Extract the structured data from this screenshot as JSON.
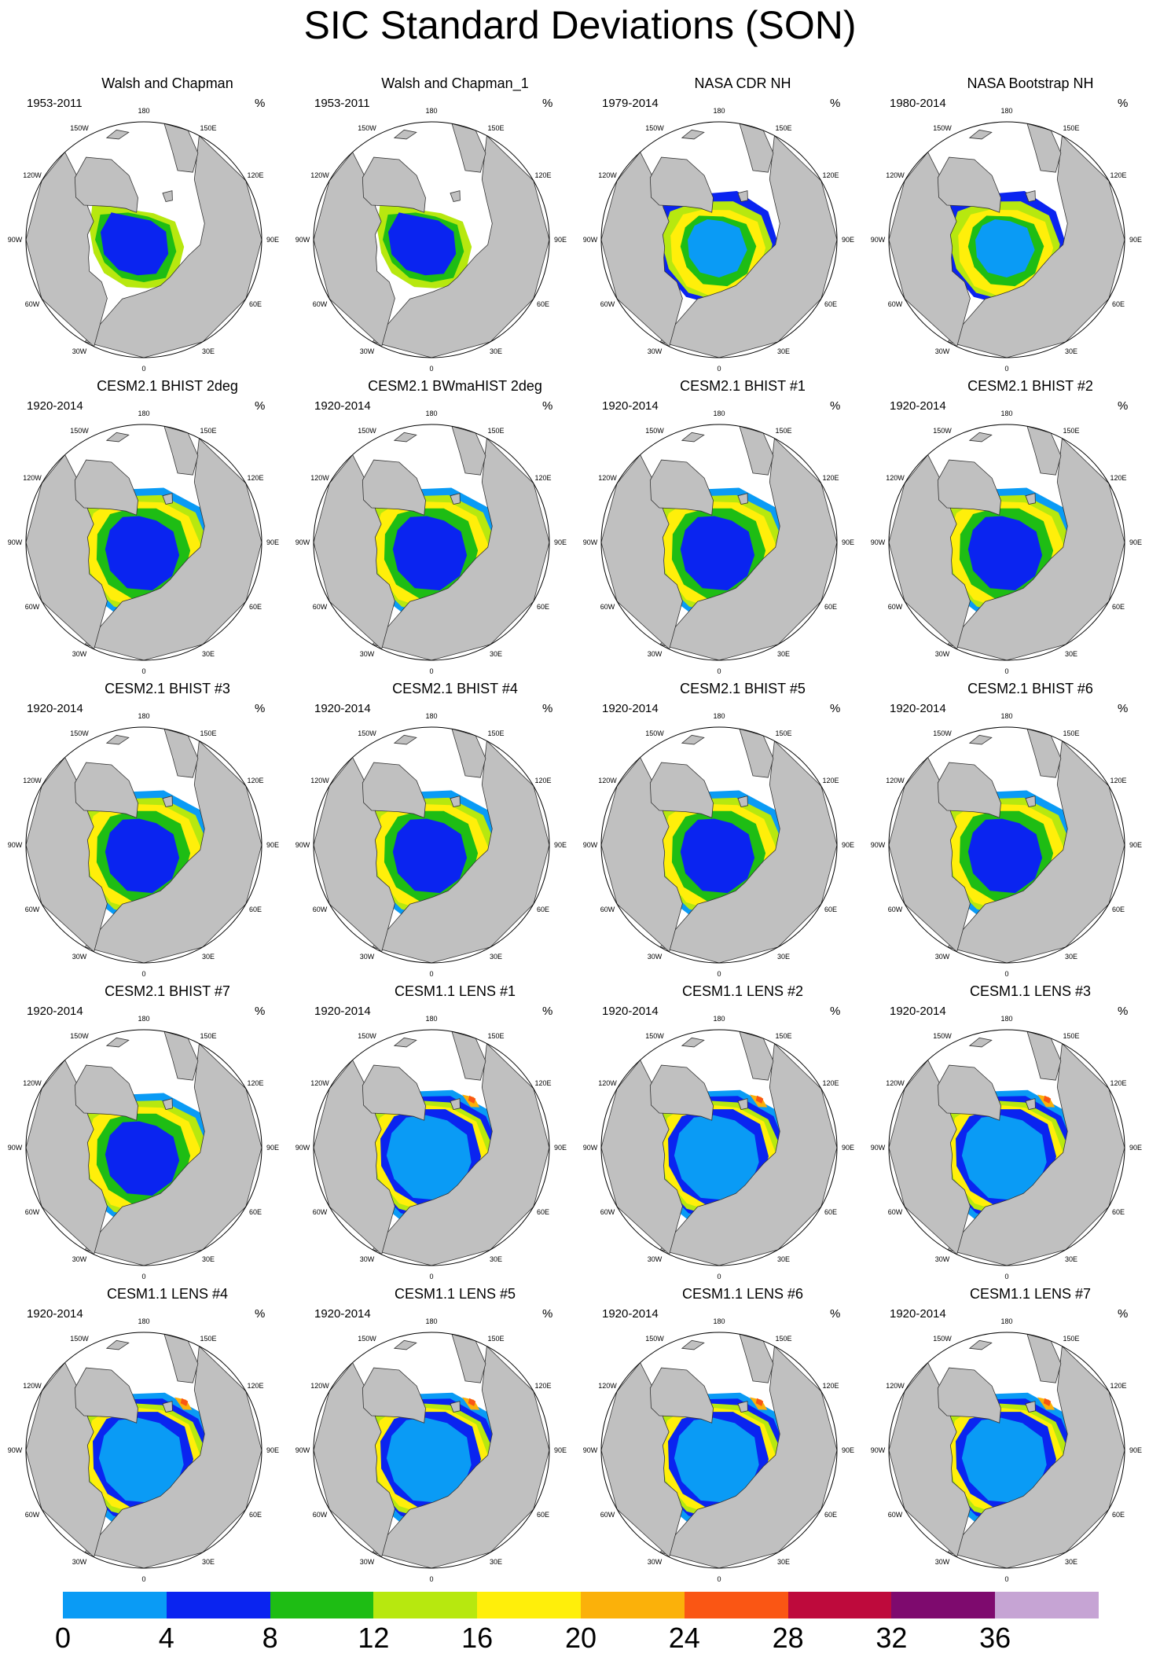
{
  "title": "SIC Standard Deviations (SON)",
  "unit": "%",
  "longitude_labels": [
    "180",
    "150W",
    "150E",
    "120W",
    "120E",
    "90W",
    "90E",
    "60W",
    "60E",
    "30W",
    "30E",
    "0"
  ],
  "colors": {
    "land": "#c0c0c0",
    "ocean": "#ffffff",
    "coast": "#333333"
  },
  "colorbar": {
    "colors": [
      "#0a9bf5",
      "#0a24f0",
      "#1ebd14",
      "#b7e80f",
      "#ffef0a",
      "#fbb10a",
      "#fa5614",
      "#be0a3c",
      "#7e0a6e",
      "#c6a4d4"
    ],
    "labels": [
      "0",
      "4",
      "8",
      "12",
      "16",
      "20",
      "24",
      "28",
      "32",
      "36"
    ]
  },
  "panels": [
    {
      "title": "Walsh and Chapman",
      "years": "1953-2011",
      "style": "obs_wc"
    },
    {
      "title": "Walsh and Chapman_1",
      "years": "1953-2011",
      "style": "obs_wc"
    },
    {
      "title": "NASA CDR NH",
      "years": "1979-2014",
      "style": "obs_sat"
    },
    {
      "title": "NASA Bootstrap NH",
      "years": "1980-2014",
      "style": "obs_sat"
    },
    {
      "title": "CESM2.1 BHIST 2deg",
      "years": "1920-2014",
      "style": "cesm2"
    },
    {
      "title": "CESM2.1 BWmaHIST 2deg",
      "years": "1920-2014",
      "style": "cesm2"
    },
    {
      "title": "CESM2.1 BHIST #1",
      "years": "1920-2014",
      "style": "cesm2"
    },
    {
      "title": "CESM2.1 BHIST #2",
      "years": "1920-2014",
      "style": "cesm2"
    },
    {
      "title": "CESM2.1 BHIST #3",
      "years": "1920-2014",
      "style": "cesm2"
    },
    {
      "title": "CESM2.1 BHIST #4",
      "years": "1920-2014",
      "style": "cesm2"
    },
    {
      "title": "CESM2.1 BHIST #5",
      "years": "1920-2014",
      "style": "cesm2"
    },
    {
      "title": "CESM2.1 BHIST #6",
      "years": "1920-2014",
      "style": "cesm2"
    },
    {
      "title": "CESM2.1 BHIST #7",
      "years": "1920-2014",
      "style": "cesm2"
    },
    {
      "title": "CESM1.1 LENS #1",
      "years": "1920-2014",
      "style": "lens"
    },
    {
      "title": "CESM1.1 LENS #2",
      "years": "1920-2014",
      "style": "lens"
    },
    {
      "title": "CESM1.1 LENS #3",
      "years": "1920-2014",
      "style": "lens"
    },
    {
      "title": "CESM1.1 LENS #4",
      "years": "1920-2014",
      "style": "lens"
    },
    {
      "title": "CESM1.1 LENS #5",
      "years": "1920-2014",
      "style": "lens"
    },
    {
      "title": "CESM1.1 LENS #6",
      "years": "1920-2014",
      "style": "lens"
    },
    {
      "title": "CESM1.1 LENS #7",
      "years": "1920-2014",
      "style": "lens"
    }
  ]
}
